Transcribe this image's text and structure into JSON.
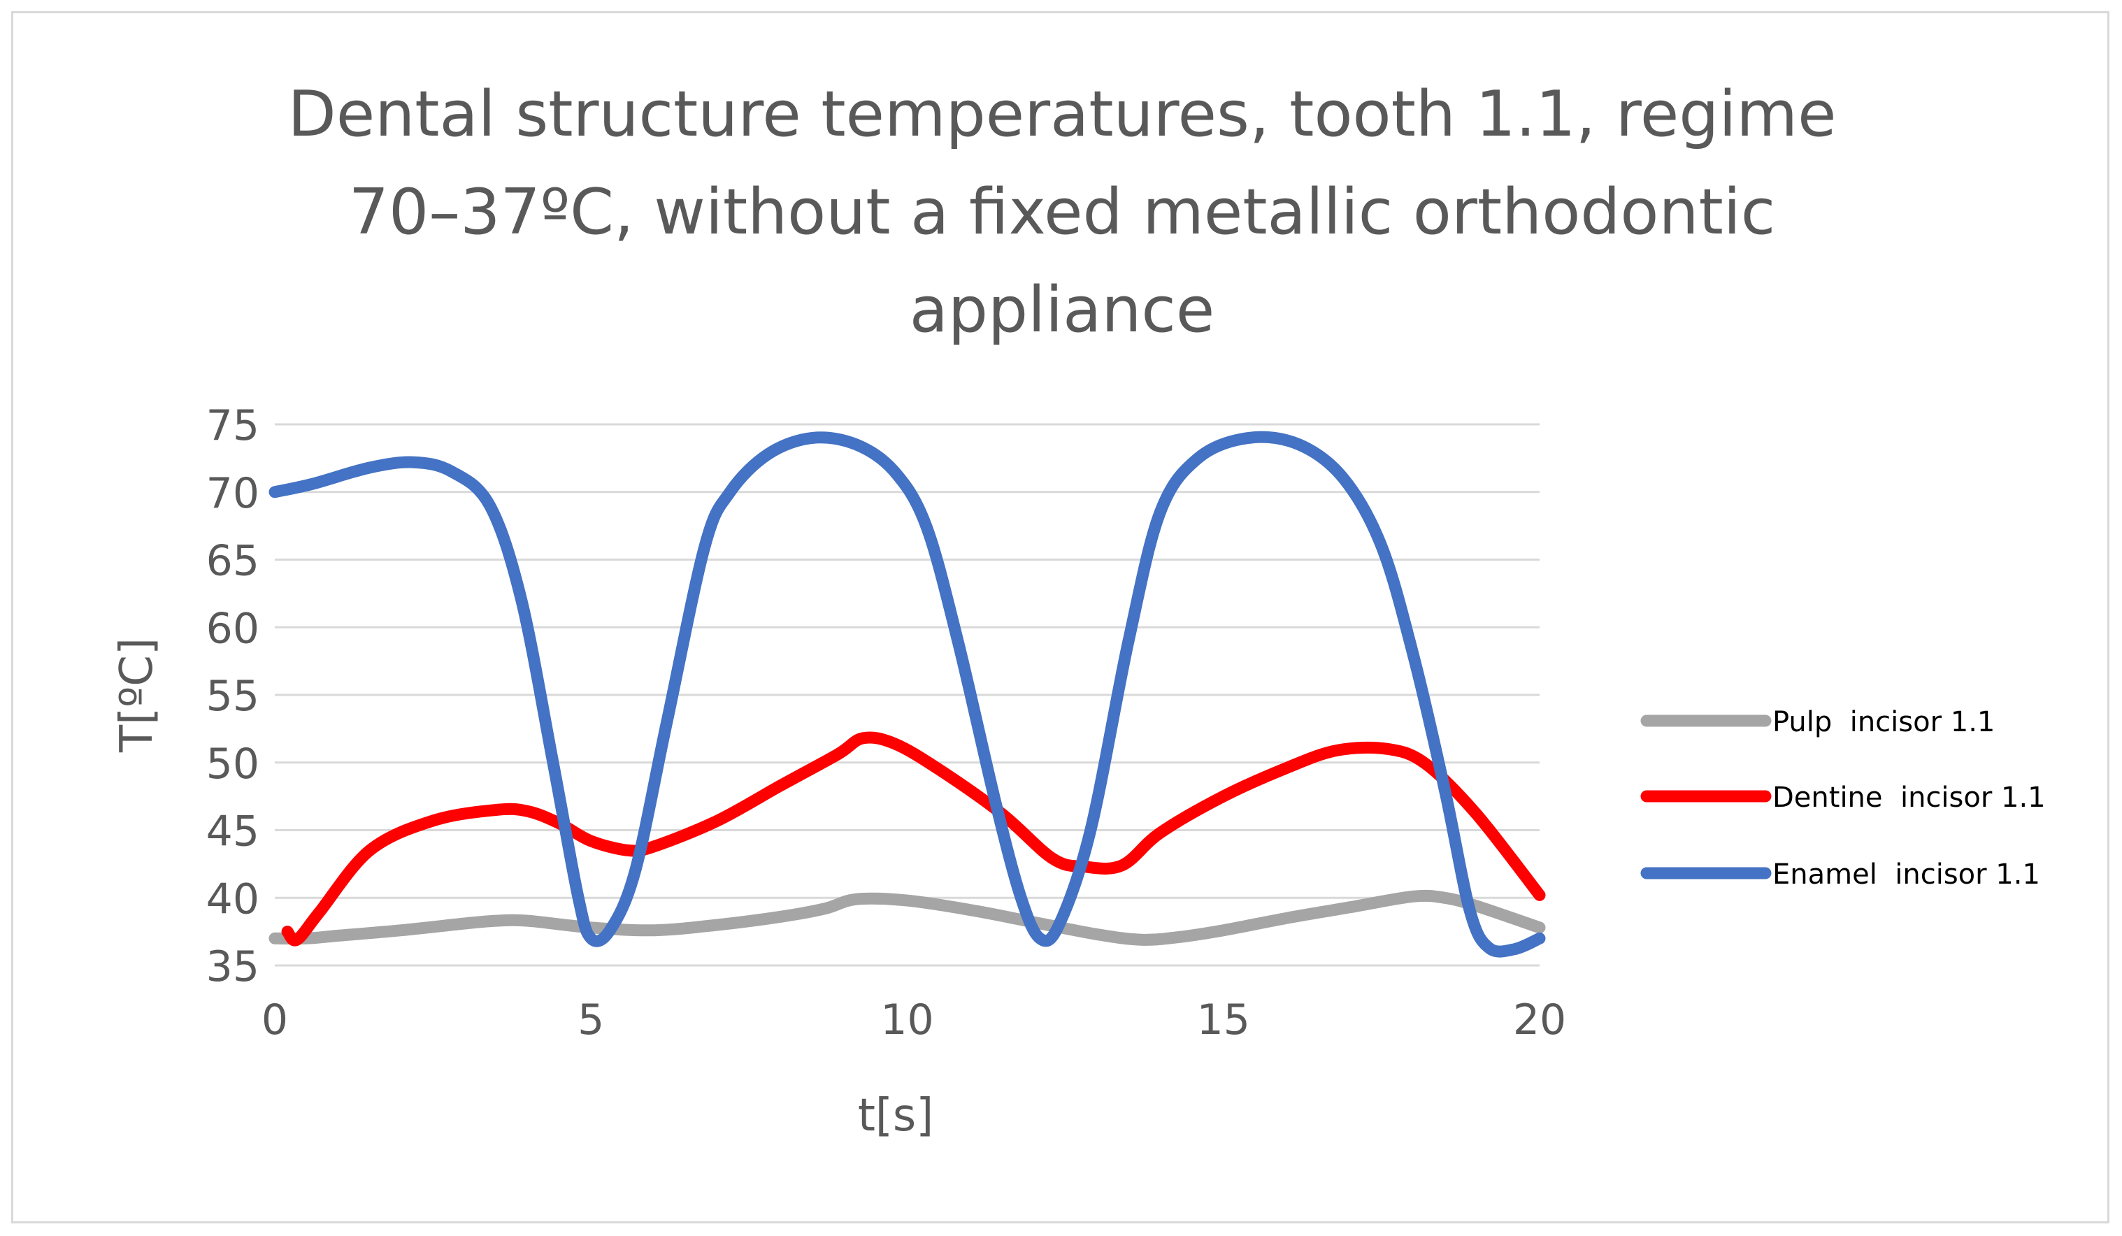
{
  "chart_data": {
    "type": "line",
    "title_lines": [
      "Dental structure temperatures, tooth 1.1, regime",
      "70–37ºC, without a fixed metallic orthodontic",
      "appliance"
    ],
    "xlabel": "t[s]",
    "ylabel": "T[ºC]",
    "xlim": [
      0,
      20
    ],
    "ylim": [
      35,
      75
    ],
    "x_ticks": [
      0,
      5,
      10,
      15,
      20
    ],
    "y_ticks": [
      35,
      40,
      45,
      50,
      55,
      60,
      65,
      70,
      75
    ],
    "grid": "horizontal",
    "legend_position": "right",
    "series": [
      {
        "name": "Pulp  incisor 1.1",
        "color": "#a5a5a5",
        "points": [
          [
            0,
            37
          ],
          [
            0.5,
            37
          ],
          [
            1,
            37.2
          ],
          [
            2,
            37.6
          ],
          [
            3,
            38.1
          ],
          [
            3.5,
            38.3
          ],
          [
            4,
            38.3
          ],
          [
            5,
            37.8
          ],
          [
            6,
            37.6
          ],
          [
            7,
            38
          ],
          [
            8,
            38.6
          ],
          [
            8.7,
            39.2
          ],
          [
            9.2,
            39.9
          ],
          [
            10,
            39.8
          ],
          [
            11,
            39.1
          ],
          [
            12,
            38.2
          ],
          [
            13,
            37.3
          ],
          [
            13.7,
            36.9
          ],
          [
            14.3,
            37.1
          ],
          [
            15,
            37.6
          ],
          [
            16,
            38.5
          ],
          [
            17,
            39.3
          ],
          [
            18,
            40.1
          ],
          [
            18.5,
            40
          ],
          [
            19,
            39.4
          ],
          [
            20,
            37.8
          ]
        ]
      },
      {
        "name": "Dentine  incisor 1.1",
        "color": "#ff0000",
        "points": [
          [
            0.2,
            37.5
          ],
          [
            0.35,
            36.9
          ],
          [
            0.7,
            38.9
          ],
          [
            1.5,
            43.5
          ],
          [
            2.5,
            45.7
          ],
          [
            3.5,
            46.5
          ],
          [
            4,
            46.4
          ],
          [
            4.5,
            45.5
          ],
          [
            5,
            44.2
          ],
          [
            5.6,
            43.5
          ],
          [
            6,
            43.8
          ],
          [
            7,
            45.7
          ],
          [
            8,
            48.3
          ],
          [
            8.9,
            50.6
          ],
          [
            9.3,
            51.8
          ],
          [
            9.8,
            51.4
          ],
          [
            10.5,
            49.5
          ],
          [
            11.5,
            46.2
          ],
          [
            12.3,
            42.9
          ],
          [
            12.8,
            42.3
          ],
          [
            13.4,
            42.4
          ],
          [
            14,
            44.8
          ],
          [
            15,
            47.5
          ],
          [
            16,
            49.6
          ],
          [
            16.8,
            50.9
          ],
          [
            17.6,
            51
          ],
          [
            18.2,
            49.9
          ],
          [
            19,
            46.2
          ],
          [
            20,
            40.2
          ]
        ]
      },
      {
        "name": "Enamel  incisor 1.1",
        "color": "#4472c4",
        "points": [
          [
            0,
            70
          ],
          [
            0.6,
            70.6
          ],
          [
            1.5,
            71.8
          ],
          [
            2.2,
            72.2
          ],
          [
            2.8,
            71.5
          ],
          [
            3.4,
            69
          ],
          [
            3.9,
            62
          ],
          [
            4.4,
            50
          ],
          [
            4.8,
            40
          ],
          [
            5,
            37
          ],
          [
            5.3,
            37.6
          ],
          [
            5.7,
            42
          ],
          [
            6.2,
            53
          ],
          [
            6.8,
            66
          ],
          [
            7.2,
            70
          ],
          [
            7.8,
            72.8
          ],
          [
            8.5,
            74
          ],
          [
            9.2,
            73.5
          ],
          [
            9.8,
            71.5
          ],
          [
            10.3,
            67.5
          ],
          [
            10.8,
            59
          ],
          [
            11.4,
            47
          ],
          [
            11.8,
            40
          ],
          [
            12.1,
            37
          ],
          [
            12.4,
            38
          ],
          [
            12.9,
            45
          ],
          [
            13.5,
            59
          ],
          [
            14,
            68.5
          ],
          [
            14.6,
            72.5
          ],
          [
            15.4,
            74
          ],
          [
            16.2,
            73.5
          ],
          [
            16.9,
            71
          ],
          [
            17.5,
            66
          ],
          [
            18,
            58
          ],
          [
            18.5,
            48
          ],
          [
            18.9,
            39
          ],
          [
            19.2,
            36.3
          ],
          [
            19.6,
            36.2
          ],
          [
            20,
            37
          ]
        ]
      }
    ]
  }
}
